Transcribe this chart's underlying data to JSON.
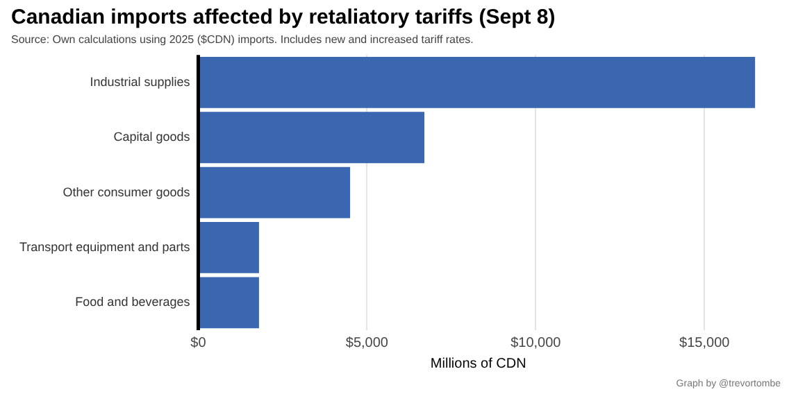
{
  "chart_data": {
    "type": "bar",
    "orientation": "horizontal",
    "title": "Canadian imports affected by retaliatory tariffs (Sept 8)",
    "subtitle": "Source: Own calculations using 2025 ($CDN) imports. Includes new and increased tariff rates.",
    "xlabel": "Millions of CDN",
    "categories": [
      "Industrial supplies",
      "Capital goods",
      "Other consumer goods",
      "Transport equipment and parts",
      "Food and beverages"
    ],
    "values": [
      16500,
      6700,
      4500,
      1800,
      1800
    ],
    "color": "#3a67b0",
    "xlim": [
      0,
      16600
    ],
    "xticks": [
      {
        "value": 0,
        "label": "$0"
      },
      {
        "value": 5000,
        "label": "$5,000"
      },
      {
        "value": 10000,
        "label": "$10,000"
      },
      {
        "value": 15000,
        "label": "$15,000"
      }
    ],
    "grid": "x",
    "annotations": [
      "Graph by @trevortombe"
    ]
  }
}
